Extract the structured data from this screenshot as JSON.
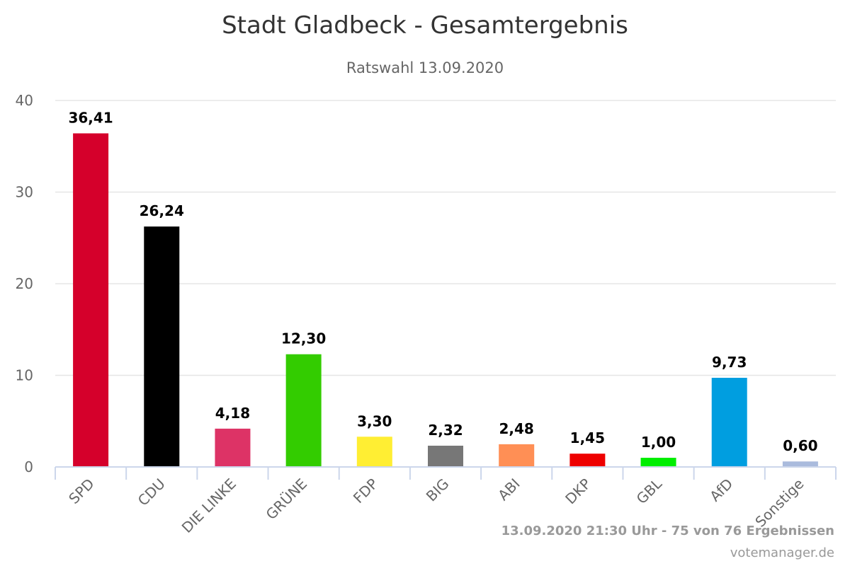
{
  "chart_data": {
    "type": "bar",
    "title": "Stadt Gladbeck - Gesamtergebnis",
    "subtitle": "Ratswahl 13.09.2020",
    "xlabel": "",
    "ylabel": "",
    "ylim": [
      0,
      40
    ],
    "yticks": [
      "0",
      "10",
      "20",
      "30",
      "40"
    ],
    "grid": true,
    "categories": [
      "SPD",
      "CDU",
      "DIE LINKE",
      "GRÜNE",
      "FDP",
      "BIG",
      "ABI",
      "DKP",
      "GBL",
      "AfD",
      "Sonstige"
    ],
    "values": [
      36.41,
      26.24,
      4.18,
      12.3,
      3.3,
      2.32,
      2.48,
      1.45,
      1.0,
      9.73,
      0.6
    ],
    "value_labels": [
      "36,41",
      "26,24",
      "4,18",
      "12,30",
      "3,30",
      "2,32",
      "2,48",
      "1,45",
      "1,00",
      "9,73",
      "0,60"
    ],
    "colors": [
      "#d5002b",
      "#000000",
      "#dd3366",
      "#33cc00",
      "#ffee33",
      "#777777",
      "#ff8f55",
      "#ee0000",
      "#00ee00",
      "#009ee0",
      "#aabbdd"
    ]
  },
  "footer": {
    "status": "13.09.2020 21:30 Uhr - 75 von 76 Ergebnissen",
    "credit": "votemanager.de"
  },
  "colors": {
    "grid": "#e6e6e6",
    "axis": "#ccd6eb"
  }
}
